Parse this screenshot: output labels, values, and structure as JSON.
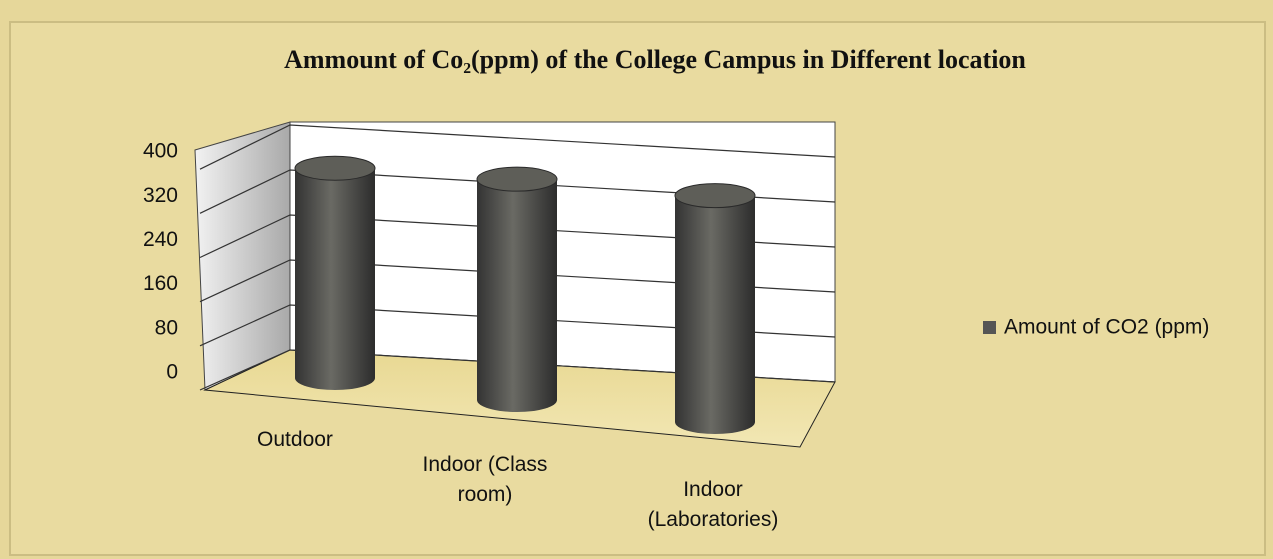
{
  "chart_data": {
    "type": "bar3d",
    "title": "Ammount of Co₂(ppm) of the College Campus in  Different location",
    "categories": [
      "Outdoor",
      "Indoor (Class room)",
      "Indoor (Laboratories)"
    ],
    "series": [
      {
        "name": "Amount of CO2 (ppm)",
        "color": "#555555",
        "values": [
          380,
          400,
          410
        ]
      }
    ],
    "ylim": [
      0,
      480
    ],
    "yticks": [
      0,
      80,
      160,
      240,
      320,
      400
    ],
    "grid": true,
    "legend": "right"
  }
}
